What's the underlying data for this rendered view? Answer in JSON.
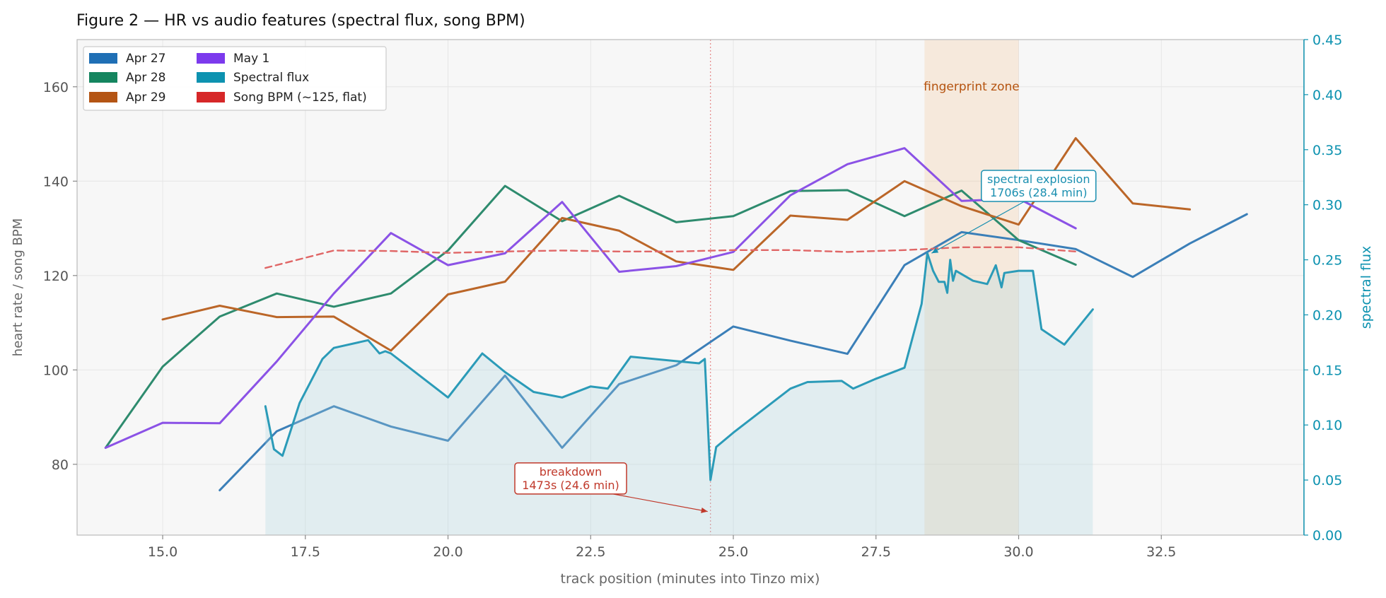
{
  "chart_data": {
    "type": "line",
    "title": "Figure 2 — HR vs audio features (spectral flux, song BPM)",
    "xlabel": "track position (minutes into Tinzo mix)",
    "ylabel": "heart rate / song BPM",
    "y2label": "spectral flux",
    "xlim": [
      13.5,
      35.0
    ],
    "ylim": [
      65,
      170
    ],
    "y2lim": [
      0.0,
      0.45
    ],
    "xticks": [
      "15.0",
      "17.5",
      "20.0",
      "22.5",
      "25.0",
      "27.5",
      "30.0",
      "32.5"
    ],
    "xtick_values": [
      15.0,
      17.5,
      20.0,
      22.5,
      25.0,
      27.5,
      30.0,
      32.5
    ],
    "yticks": [
      "80",
      "100",
      "120",
      "140",
      "160"
    ],
    "ytick_values": [
      80,
      100,
      120,
      140,
      160
    ],
    "y2ticks": [
      "0.00",
      "0.05",
      "0.10",
      "0.15",
      "0.20",
      "0.25",
      "0.30",
      "0.35",
      "0.40",
      "0.45"
    ],
    "y2tick_values": [
      0.0,
      0.05,
      0.1,
      0.15,
      0.2,
      0.25,
      0.3,
      0.35,
      0.4,
      0.45
    ],
    "grid": true,
    "legend_position": "top-left",
    "legend": [
      {
        "label": "Apr 27",
        "color": "#1f6fb5"
      },
      {
        "label": "Apr 28",
        "color": "#15855f"
      },
      {
        "label": "Apr 29",
        "color": "#b45514"
      },
      {
        "label": "May 1",
        "color": "#7c3aed"
      },
      {
        "label": "Spectral flux",
        "color": "#0d92b0"
      },
      {
        "label": "Song BPM (~125, flat)",
        "color": "#d62728"
      }
    ],
    "series": [
      {
        "name": "Apr 27",
        "color": "#3b7fb8",
        "axis": "left",
        "x": [
          16,
          17,
          18,
          19,
          20,
          21,
          22,
          23,
          24,
          25,
          26,
          27,
          28,
          29,
          30,
          31,
          32,
          33,
          34
        ],
        "y": [
          74.5,
          87,
          92.3,
          88,
          85,
          98.8,
          83.5,
          97,
          101,
          109.2,
          106.2,
          103.4,
          122.2,
          129.2,
          127.5,
          125.6,
          119.7,
          126.8,
          133
        ]
      },
      {
        "name": "Apr 28",
        "color": "#2e8b6e",
        "axis": "left",
        "x": [
          14,
          15,
          16,
          17,
          18,
          19,
          20,
          21,
          22,
          23,
          24,
          25,
          26,
          27,
          28,
          29,
          30,
          31
        ],
        "y": [
          83.5,
          100.7,
          111.3,
          116.2,
          113.4,
          116.2,
          125.3,
          139,
          131.5,
          136.9,
          131.3,
          132.6,
          137.9,
          138.1,
          132.6,
          138,
          127.5,
          122.3
        ]
      },
      {
        "name": "Apr 29",
        "color": "#bb6628",
        "axis": "left",
        "x": [
          15,
          16,
          17,
          18,
          19,
          20,
          21,
          22,
          23,
          24,
          25,
          26,
          27,
          28,
          29,
          30,
          31,
          32,
          33
        ],
        "y": [
          110.7,
          113.6,
          111.2,
          111.3,
          104.1,
          116,
          118.7,
          132.2,
          129.5,
          123,
          121.2,
          132.7,
          131.8,
          140,
          134.7,
          130.8,
          149.1,
          135.3,
          134
        ]
      },
      {
        "name": "May 1",
        "color": "#8b52e6",
        "axis": "left",
        "x": [
          14,
          15,
          16,
          17,
          18,
          19,
          20,
          21,
          22,
          23,
          24,
          25,
          26,
          27,
          28,
          29,
          30,
          31
        ],
        "y": [
          83.5,
          88.8,
          88.7,
          101.8,
          116.2,
          129,
          122.2,
          124.7,
          135.6,
          120.8,
          122,
          125,
          137,
          143.6,
          147,
          135.8,
          136.3,
          130
        ]
      },
      {
        "name": "Song BPM (~125, flat)",
        "color": "#e06666",
        "axis": "left",
        "dashed": true,
        "x": [
          16.8,
          18,
          19,
          20,
          21,
          22,
          23,
          24,
          25,
          26,
          27,
          28,
          29,
          30,
          31
        ],
        "y": [
          121.6,
          125.3,
          125.2,
          124.8,
          125.1,
          125.3,
          125.1,
          125.1,
          125.4,
          125.4,
          125,
          125.4,
          126,
          126,
          125.1
        ]
      },
      {
        "name": "Spectral flux",
        "color": "#2b9bb8",
        "axis": "right",
        "fill": true,
        "x": [
          16.8,
          16.95,
          17.1,
          17.4,
          17.8,
          18,
          18.6,
          18.8,
          18.9,
          19,
          20,
          20.6,
          21,
          21.5,
          22,
          22.5,
          22.8,
          23.2,
          24.4,
          24.5,
          24.6,
          24.7,
          25,
          26,
          26.3,
          26.9,
          27.1,
          27.5,
          28,
          28.3,
          28.4,
          28.5,
          28.6,
          28.7,
          28.75,
          28.8,
          28.85,
          28.9,
          29.2,
          29.45,
          29.6,
          29.7,
          29.75,
          30,
          30.25,
          30.4,
          30.8,
          31.3
        ],
        "y": [
          0.117,
          0.078,
          0.072,
          0.12,
          0.16,
          0.17,
          0.177,
          0.165,
          0.167,
          0.165,
          0.125,
          0.165,
          0.148,
          0.13,
          0.125,
          0.135,
          0.133,
          0.162,
          0.156,
          0.16,
          0.05,
          0.08,
          0.093,
          0.133,
          0.139,
          0.14,
          0.133,
          0.142,
          0.152,
          0.21,
          0.256,
          0.24,
          0.23,
          0.23,
          0.22,
          0.25,
          0.231,
          0.24,
          0.231,
          0.228,
          0.245,
          0.225,
          0.238,
          0.24,
          0.24,
          0.187,
          0.173,
          0.205
        ]
      }
    ],
    "annotations": {
      "breakdown": {
        "lines": [
          "breakdown",
          "1473s (24.6 min)"
        ],
        "x": 24.6
      },
      "spectral": {
        "lines": [
          "spectral explosion",
          "1706s (28.4 min)"
        ],
        "x": 28.4
      },
      "zone": {
        "label": "fingerprint zone",
        "x_start": 28.35,
        "x_end": 30.0
      }
    }
  }
}
